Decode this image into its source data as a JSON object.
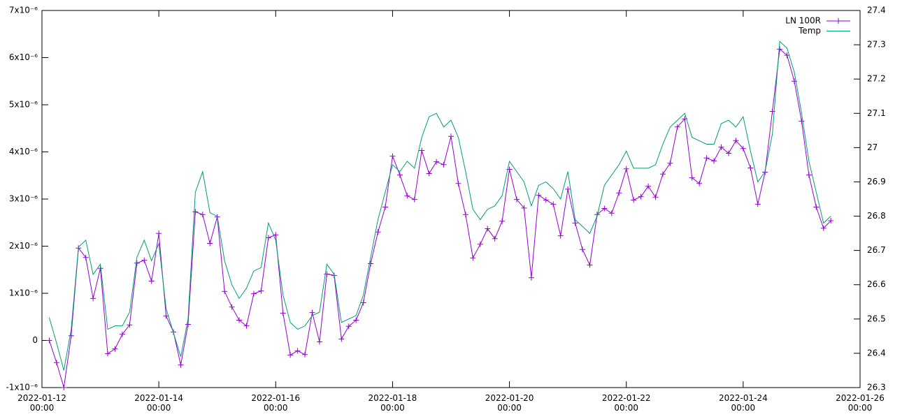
{
  "chart_data": {
    "type": "line",
    "x": [
      "2022-01-12 03:00",
      "2022-01-12 06:00",
      "2022-01-12 09:00",
      "2022-01-12 12:00",
      "2022-01-12 15:00",
      "2022-01-12 18:00",
      "2022-01-12 21:00",
      "2022-01-13 00:00",
      "2022-01-13 03:00",
      "2022-01-13 06:00",
      "2022-01-13 09:00",
      "2022-01-13 12:00",
      "2022-01-13 15:00",
      "2022-01-13 18:00",
      "2022-01-13 21:00",
      "2022-01-14 00:00",
      "2022-01-14 03:00",
      "2022-01-14 06:00",
      "2022-01-14 09:00",
      "2022-01-14 12:00",
      "2022-01-14 15:00",
      "2022-01-14 18:00",
      "2022-01-14 21:00",
      "2022-01-15 00:00",
      "2022-01-15 03:00",
      "2022-01-15 06:00",
      "2022-01-15 09:00",
      "2022-01-15 12:00",
      "2022-01-15 15:00",
      "2022-01-15 18:00",
      "2022-01-15 21:00",
      "2022-01-16 00:00",
      "2022-01-16 03:00",
      "2022-01-16 06:00",
      "2022-01-16 09:00",
      "2022-01-16 12:00",
      "2022-01-16 15:00",
      "2022-01-16 18:00",
      "2022-01-16 21:00",
      "2022-01-17 00:00",
      "2022-01-17 03:00",
      "2022-01-17 06:00",
      "2022-01-17 09:00",
      "2022-01-17 12:00",
      "2022-01-17 15:00",
      "2022-01-17 18:00",
      "2022-01-17 21:00",
      "2022-01-18 00:00",
      "2022-01-18 03:00",
      "2022-01-18 06:00",
      "2022-01-18 09:00",
      "2022-01-18 12:00",
      "2022-01-18 15:00",
      "2022-01-18 18:00",
      "2022-01-18 21:00",
      "2022-01-19 00:00",
      "2022-01-19 03:00",
      "2022-01-19 06:00",
      "2022-01-19 09:00",
      "2022-01-19 12:00",
      "2022-01-19 15:00",
      "2022-01-19 18:00",
      "2022-01-19 21:00",
      "2022-01-20 00:00",
      "2022-01-20 03:00",
      "2022-01-20 06:00",
      "2022-01-20 09:00",
      "2022-01-20 12:00",
      "2022-01-20 15:00",
      "2022-01-20 18:00",
      "2022-01-20 21:00",
      "2022-01-21 00:00",
      "2022-01-21 03:00",
      "2022-01-21 06:00",
      "2022-01-21 09:00",
      "2022-01-21 12:00",
      "2022-01-21 15:00",
      "2022-01-21 18:00",
      "2022-01-21 21:00",
      "2022-01-22 00:00",
      "2022-01-22 03:00",
      "2022-01-22 06:00",
      "2022-01-22 09:00",
      "2022-01-22 12:00",
      "2022-01-22 15:00",
      "2022-01-22 18:00",
      "2022-01-22 21:00",
      "2022-01-23 00:00",
      "2022-01-23 03:00",
      "2022-01-23 06:00",
      "2022-01-23 09:00",
      "2022-01-23 12:00",
      "2022-01-23 15:00",
      "2022-01-23 18:00",
      "2022-01-23 21:00",
      "2022-01-24 00:00",
      "2022-01-24 03:00",
      "2022-01-24 06:00",
      "2022-01-24 09:00",
      "2022-01-24 12:00",
      "2022-01-24 15:00",
      "2022-01-24 18:00",
      "2022-01-24 21:00",
      "2022-01-25 00:00",
      "2022-01-25 03:00",
      "2022-01-25 06:00",
      "2022-01-25 09:00",
      "2022-01-25 12:00"
    ],
    "series": [
      {
        "name": "LN 100R",
        "color": "#9400d3",
        "marker": "plus",
        "values": [
          0,
          -4.7e-07,
          -1e-06,
          1e-07,
          1.96e-06,
          1.76e-06,
          8.9e-07,
          1.53e-06,
          -2.8e-07,
          -1.8e-07,
          1.3e-07,
          3.3e-07,
          1.64e-06,
          1.7e-06,
          1.26e-06,
          2.27e-06,
          5.2e-07,
          1.8e-07,
          -5.2e-07,
          3.4e-07,
          2.73e-06,
          2.67e-06,
          2.06e-06,
          2.62e-06,
          1.04e-06,
          7.1e-07,
          4.3e-07,
          3.1e-07,
          9.9e-07,
          1.05e-06,
          2.18e-06,
          2.24e-06,
          5.8e-07,
          -3.1e-07,
          -2.2e-07,
          -3e-07,
          5.9e-07,
          -3e-08,
          1.41e-06,
          1.38e-06,
          3e-08,
          3e-07,
          4.3e-07,
          8e-07,
          1.63e-06,
          2.3e-06,
          2.83e-06,
          3.91e-06,
          3.51e-06,
          3.07e-06,
          2.99e-06,
          4.03e-06,
          3.54e-06,
          3.79e-06,
          3.73e-06,
          4.33e-06,
          3.33e-06,
          2.67e-06,
          1.75e-06,
          2.04e-06,
          2.37e-06,
          2.16e-06,
          2.53e-06,
          3.63e-06,
          2.99e-06,
          2.81e-06,
          1.33e-06,
          3.08e-06,
          2.98e-06,
          2.89e-06,
          2.22e-06,
          3.21e-06,
          2.49e-06,
          1.93e-06,
          1.6e-06,
          2.67e-06,
          2.8e-06,
          2.7e-06,
          3.13e-06,
          3.64e-06,
          2.98e-06,
          3.05e-06,
          3.27e-06,
          3.04e-06,
          3.53e-06,
          3.76e-06,
          4.53e-06,
          4.7e-06,
          3.45e-06,
          3.33e-06,
          3.87e-06,
          3.81e-06,
          4.1e-06,
          3.97e-06,
          4.24e-06,
          4.07e-06,
          3.66e-06,
          2.89e-06,
          3.57e-06,
          4.86e-06,
          6.18e-06,
          6.05e-06,
          5.5e-06,
          4.65e-06,
          3.51e-06,
          2.83e-06,
          2.38e-06,
          2.54e-06
        ]
      },
      {
        "name": "Temp",
        "color": "#009e73",
        "axis": "y2",
        "values": [
          26.504,
          26.43,
          26.35,
          26.47,
          26.71,
          26.73,
          26.63,
          26.66,
          26.47,
          26.48,
          26.48,
          26.52,
          26.68,
          26.73,
          26.67,
          26.72,
          26.53,
          26.46,
          26.39,
          26.5,
          26.87,
          26.93,
          26.81,
          26.8,
          26.67,
          26.6,
          26.56,
          26.59,
          26.64,
          26.65,
          26.78,
          26.73,
          26.57,
          26.49,
          26.47,
          26.48,
          26.51,
          26.52,
          26.66,
          26.63,
          26.49,
          26.5,
          26.51,
          26.57,
          26.68,
          26.79,
          26.87,
          26.95,
          26.93,
          26.96,
          26.94,
          27.03,
          27.09,
          27.1,
          27.06,
          27.08,
          27.03,
          26.93,
          26.82,
          26.79,
          26.82,
          26.83,
          26.86,
          26.96,
          26.93,
          26.9,
          26.83,
          26.89,
          26.9,
          26.88,
          26.85,
          26.93,
          26.79,
          26.77,
          26.75,
          26.8,
          26.89,
          26.92,
          26.95,
          26.99,
          26.94,
          26.94,
          26.94,
          26.95,
          27.01,
          27.06,
          27.08,
          27.1,
          27.03,
          27.02,
          27.01,
          27.01,
          27.07,
          27.08,
          27.06,
          27.09,
          26.99,
          26.9,
          26.93,
          27.04,
          27.31,
          27.29,
          27.22,
          27.1,
          26.96,
          26.87,
          26.78,
          26.8
        ]
      }
    ],
    "xlim": [
      "2022-01-12 00:00",
      "2022-01-26 00:00"
    ],
    "xticks": [
      {
        "value": "2022-01-12 00:00",
        "label": "2022-01-12\n00:00"
      },
      {
        "value": "2022-01-14 00:00",
        "label": "2022-01-14\n00:00"
      },
      {
        "value": "2022-01-16 00:00",
        "label": "2022-01-16\n00:00"
      },
      {
        "value": "2022-01-18 00:00",
        "label": "2022-01-18\n00:00"
      },
      {
        "value": "2022-01-20 00:00",
        "label": "2022-01-20\n00:00"
      },
      {
        "value": "2022-01-22 00:00",
        "label": "2022-01-22\n00:00"
      },
      {
        "value": "2022-01-24 00:00",
        "label": "2022-01-24\n00:00"
      },
      {
        "value": "2022-01-26 00:00",
        "label": "2022-01-26\n00:00"
      }
    ],
    "ylim": [
      -1e-06,
      7e-06
    ],
    "yticks": [
      {
        "value": -1e-06,
        "label": "-1x10⁻⁶"
      },
      0,
      {
        "value": 1e-06,
        "label": "1x10⁻⁶"
      },
      {
        "value": 2e-06,
        "label": "2x10⁻⁶"
      },
      {
        "value": 3e-06,
        "label": "3x10⁻⁶"
      },
      {
        "value": 4e-06,
        "label": "4x10⁻⁶"
      },
      {
        "value": 5e-06,
        "label": "5x10⁻⁶"
      },
      {
        "value": 6e-06,
        "label": "6x10⁻⁶"
      },
      {
        "value": 7e-06,
        "label": "7x10⁻⁶"
      }
    ],
    "y2lim": [
      26.3,
      27.4
    ],
    "y2ticks": [
      26.3,
      26.4,
      26.5,
      26.6,
      26.7,
      26.8,
      26.9,
      27,
      27.1,
      27.2,
      27.3,
      27.4
    ],
    "legend": "top right"
  }
}
